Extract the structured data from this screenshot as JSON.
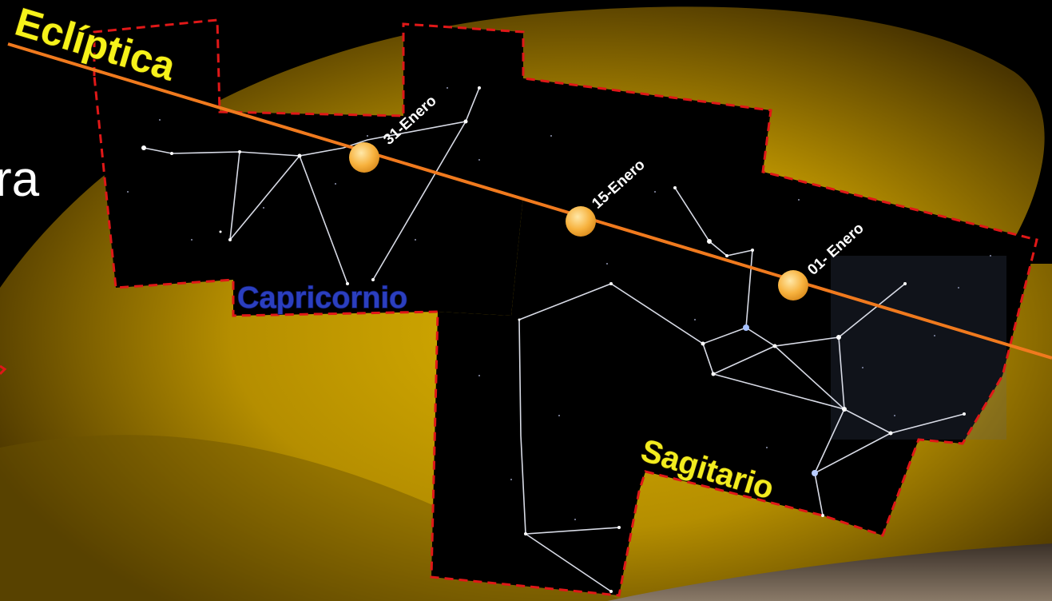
{
  "labels": {
    "ecliptic": "Eclíptica",
    "edge_fragment": "ra",
    "capricornio": "Capricornio",
    "sagitario": "Sagitario"
  },
  "sun_positions": [
    {
      "date": "31-Enero"
    },
    {
      "date": "15-Enero"
    },
    {
      "date": "01- Enero"
    }
  ],
  "colors": {
    "ecliptic_line": "#f07a1e",
    "boundary": "#e01818",
    "sun": "#f7b23e",
    "milky_way": "#c9a000",
    "sky": "#000000"
  }
}
